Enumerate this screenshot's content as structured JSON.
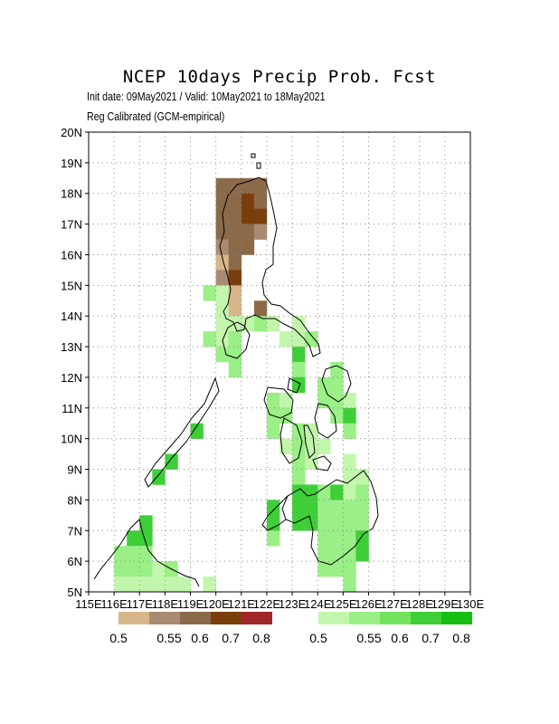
{
  "title": "NCEP 10days Precip Prob. Fcst",
  "subtitle_1": "Init date: 09May2021 / Valid: 10May2021 to 18May2021",
  "subtitle_2": "Reg Calibrated (GCM-empirical)",
  "axes": {
    "lat_labels": [
      "20N",
      "19N",
      "18N",
      "17N",
      "16N",
      "15N",
      "14N",
      "13N",
      "12N",
      "11N",
      "10N",
      "9N",
      "8N",
      "7N",
      "6N",
      "5N"
    ],
    "lon_labels": [
      "115E",
      "116E",
      "117E",
      "118E",
      "119E",
      "120E",
      "121E",
      "122E",
      "123E",
      "124E",
      "125E",
      "126E",
      "127E",
      "128E",
      "129E",
      "130E"
    ],
    "lon_range": [
      115,
      130
    ],
    "lat_range": [
      5,
      20
    ],
    "grid": "dotted"
  },
  "legend_below": {
    "labels": [
      "0.5",
      "0.55",
      "0.6",
      "0.7",
      "0.8"
    ],
    "colors": [
      "#d8b68c",
      "#a98a73",
      "#8b6a4a",
      "#7a3e0c",
      "#a0262a"
    ]
  },
  "legend_above": {
    "labels": [
      "0.5",
      "0.55",
      "0.6",
      "0.7",
      "0.8"
    ],
    "colors": [
      "#c3f6ad",
      "#9aef86",
      "#72e35c",
      "#3ecf38",
      "#17bf14"
    ]
  },
  "chart_data": {
    "type": "heatmap",
    "cells": [
      {
        "lon": 120.25,
        "lat": 18.25,
        "c": "#8b6a4a"
      },
      {
        "lon": 120.75,
        "lat": 18.25,
        "c": "#8b6a4a"
      },
      {
        "lon": 121.25,
        "lat": 18.25,
        "c": "#8b6a4a"
      },
      {
        "lon": 121.75,
        "lat": 18.25,
        "c": "#8b6a4a"
      },
      {
        "lon": 120.25,
        "lat": 17.75,
        "c": "#8b6a4a"
      },
      {
        "lon": 120.75,
        "lat": 17.75,
        "c": "#8b6a4a"
      },
      {
        "lon": 121.25,
        "lat": 17.75,
        "c": "#7a3e0c"
      },
      {
        "lon": 121.75,
        "lat": 17.75,
        "c": "#8b6a4a"
      },
      {
        "lon": 120.25,
        "lat": 17.25,
        "c": "#8b6a4a"
      },
      {
        "lon": 120.75,
        "lat": 17.25,
        "c": "#8b6a4a"
      },
      {
        "lon": 121.25,
        "lat": 17.25,
        "c": "#7a3e0c"
      },
      {
        "lon": 121.75,
        "lat": 17.25,
        "c": "#7a3e0c"
      },
      {
        "lon": 120.25,
        "lat": 16.75,
        "c": "#8b6a4a"
      },
      {
        "lon": 120.75,
        "lat": 16.75,
        "c": "#8b6a4a"
      },
      {
        "lon": 121.25,
        "lat": 16.75,
        "c": "#8b6a4a"
      },
      {
        "lon": 121.75,
        "lat": 16.75,
        "c": "#a98a73"
      },
      {
        "lon": 120.25,
        "lat": 16.25,
        "c": "#a98a73"
      },
      {
        "lon": 120.75,
        "lat": 16.25,
        "c": "#8b6a4a"
      },
      {
        "lon": 121.25,
        "lat": 16.25,
        "c": "#8b6a4a"
      },
      {
        "lon": 120.25,
        "lat": 15.75,
        "c": "#d8b68c"
      },
      {
        "lon": 120.75,
        "lat": 15.75,
        "c": "#8b6a4a"
      },
      {
        "lon": 120.25,
        "lat": 15.25,
        "c": "#a98a73"
      },
      {
        "lon": 120.75,
        "lat": 15.25,
        "c": "#7a3e0c"
      },
      {
        "lon": 119.75,
        "lat": 14.75,
        "c": "#9aef86"
      },
      {
        "lon": 120.25,
        "lat": 14.75,
        "c": "#c3f6ad"
      },
      {
        "lon": 120.75,
        "lat": 14.75,
        "c": "#d8b68c"
      },
      {
        "lon": 120.25,
        "lat": 14.25,
        "c": "#c3f6ad"
      },
      {
        "lon": 120.75,
        "lat": 14.25,
        "c": "#d8b68c"
      },
      {
        "lon": 121.75,
        "lat": 14.25,
        "c": "#8b6a4a"
      },
      {
        "lon": 120.25,
        "lat": 13.75,
        "c": "#c3f6ad"
      },
      {
        "lon": 120.75,
        "lat": 13.75,
        "c": "#c3f6ad"
      },
      {
        "lon": 121.25,
        "lat": 13.75,
        "c": "#c3f6ad"
      },
      {
        "lon": 121.75,
        "lat": 13.75,
        "c": "#9aef86"
      },
      {
        "lon": 122.25,
        "lat": 13.75,
        "c": "#c3f6ad"
      },
      {
        "lon": 123.25,
        "lat": 13.75,
        "c": "#c3f6ad"
      },
      {
        "lon": 119.75,
        "lat": 13.25,
        "c": "#9aef86"
      },
      {
        "lon": 120.25,
        "lat": 13.25,
        "c": "#c3f6ad"
      },
      {
        "lon": 120.75,
        "lat": 13.25,
        "c": "#9aef86"
      },
      {
        "lon": 122.75,
        "lat": 13.25,
        "c": "#c3f6ad"
      },
      {
        "lon": 123.25,
        "lat": 13.25,
        "c": "#c3f6ad"
      },
      {
        "lon": 123.75,
        "lat": 13.25,
        "c": "#9aef86"
      },
      {
        "lon": 120.25,
        "lat": 12.75,
        "c": "#9aef86"
      },
      {
        "lon": 120.75,
        "lat": 12.75,
        "c": "#9aef86"
      },
      {
        "lon": 123.25,
        "lat": 12.75,
        "c": "#3ecf38"
      },
      {
        "lon": 120.75,
        "lat": 12.25,
        "c": "#9aef86"
      },
      {
        "lon": 123.25,
        "lat": 12.25,
        "c": "#9aef86"
      },
      {
        "lon": 124.75,
        "lat": 12.25,
        "c": "#9aef86"
      },
      {
        "lon": 123.25,
        "lat": 11.75,
        "c": "#3ecf38"
      },
      {
        "lon": 124.25,
        "lat": 11.75,
        "c": "#9aef86"
      },
      {
        "lon": 124.75,
        "lat": 11.75,
        "c": "#9aef86"
      },
      {
        "lon": 122.25,
        "lat": 11.25,
        "c": "#9aef86"
      },
      {
        "lon": 122.75,
        "lat": 11.25,
        "c": "#c3f6ad"
      },
      {
        "lon": 124.25,
        "lat": 11.25,
        "c": "#9aef86"
      },
      {
        "lon": 124.75,
        "lat": 11.25,
        "c": "#9aef86"
      },
      {
        "lon": 125.25,
        "lat": 11.25,
        "c": "#c3f6ad"
      },
      {
        "lon": 122.25,
        "lat": 10.75,
        "c": "#9aef86"
      },
      {
        "lon": 122.75,
        "lat": 10.75,
        "c": "#9aef86"
      },
      {
        "lon": 124.75,
        "lat": 10.75,
        "c": "#9aef86"
      },
      {
        "lon": 125.25,
        "lat": 10.75,
        "c": "#3ecf38"
      },
      {
        "lon": 122.25,
        "lat": 10.25,
        "c": "#9aef86"
      },
      {
        "lon": 123.25,
        "lat": 10.25,
        "c": "#9aef86"
      },
      {
        "lon": 123.75,
        "lat": 10.25,
        "c": "#c3f6ad"
      },
      {
        "lon": 125.25,
        "lat": 10.25,
        "c": "#9aef86"
      },
      {
        "lon": 122.75,
        "lat": 9.75,
        "c": "#c3f6ad"
      },
      {
        "lon": 123.25,
        "lat": 9.75,
        "c": "#9aef86"
      },
      {
        "lon": 123.75,
        "lat": 9.75,
        "c": "#c3f6ad"
      },
      {
        "lon": 124.25,
        "lat": 9.75,
        "c": "#c3f6ad"
      },
      {
        "lon": 123.25,
        "lat": 9.25,
        "c": "#9aef86"
      },
      {
        "lon": 123.75,
        "lat": 9.25,
        "c": "#c3f6ad"
      },
      {
        "lon": 125.25,
        "lat": 9.25,
        "c": "#c3f6ad"
      },
      {
        "lon": 123.25,
        "lat": 8.75,
        "c": "#9aef86"
      },
      {
        "lon": 125.25,
        "lat": 8.75,
        "c": "#c3f6ad"
      },
      {
        "lon": 125.75,
        "lat": 8.75,
        "c": "#c3f6ad"
      },
      {
        "lon": 123.25,
        "lat": 8.25,
        "c": "#3ecf38"
      },
      {
        "lon": 123.75,
        "lat": 8.25,
        "c": "#3ecf38"
      },
      {
        "lon": 124.25,
        "lat": 8.25,
        "c": "#9aef86"
      },
      {
        "lon": 124.75,
        "lat": 8.25,
        "c": "#3ecf38"
      },
      {
        "lon": 125.25,
        "lat": 8.25,
        "c": "#c3f6ad"
      },
      {
        "lon": 125.75,
        "lat": 8.25,
        "c": "#9aef86"
      },
      {
        "lon": 122.25,
        "lat": 7.75,
        "c": "#3ecf38"
      },
      {
        "lon": 123.25,
        "lat": 7.75,
        "c": "#3ecf38"
      },
      {
        "lon": 123.75,
        "lat": 7.75,
        "c": "#3ecf38"
      },
      {
        "lon": 124.25,
        "lat": 7.75,
        "c": "#9aef86"
      },
      {
        "lon": 124.75,
        "lat": 7.75,
        "c": "#9aef86"
      },
      {
        "lon": 125.25,
        "lat": 7.75,
        "c": "#9aef86"
      },
      {
        "lon": 125.75,
        "lat": 7.75,
        "c": "#9aef86"
      },
      {
        "lon": 122.25,
        "lat": 7.25,
        "c": "#3ecf38"
      },
      {
        "lon": 123.25,
        "lat": 7.25,
        "c": "#3ecf38"
      },
      {
        "lon": 123.75,
        "lat": 7.25,
        "c": "#3ecf38"
      },
      {
        "lon": 124.25,
        "lat": 7.25,
        "c": "#9aef86"
      },
      {
        "lon": 124.75,
        "lat": 7.25,
        "c": "#9aef86"
      },
      {
        "lon": 125.25,
        "lat": 7.25,
        "c": "#9aef86"
      },
      {
        "lon": 125.75,
        "lat": 7.25,
        "c": "#9aef86"
      },
      {
        "lon": 122.25,
        "lat": 6.75,
        "c": "#9aef86"
      },
      {
        "lon": 124.25,
        "lat": 6.75,
        "c": "#9aef86"
      },
      {
        "lon": 124.75,
        "lat": 6.75,
        "c": "#9aef86"
      },
      {
        "lon": 125.25,
        "lat": 6.75,
        "c": "#9aef86"
      },
      {
        "lon": 125.75,
        "lat": 6.75,
        "c": "#3ecf38"
      },
      {
        "lon": 124.25,
        "lat": 6.25,
        "c": "#9aef86"
      },
      {
        "lon": 124.75,
        "lat": 6.25,
        "c": "#9aef86"
      },
      {
        "lon": 125.25,
        "lat": 6.25,
        "c": "#9aef86"
      },
      {
        "lon": 125.75,
        "lat": 6.25,
        "c": "#3ecf38"
      },
      {
        "lon": 124.25,
        "lat": 5.75,
        "c": "#9aef86"
      },
      {
        "lon": 124.75,
        "lat": 5.75,
        "c": "#9aef86"
      },
      {
        "lon": 125.25,
        "lat": 5.75,
        "c": "#9aef86"
      },
      {
        "lon": 125.25,
        "lat": 5.25,
        "c": "#9aef86"
      },
      {
        "lon": 119.25,
        "lat": 10.25,
        "c": "#3ecf38"
      },
      {
        "lon": 118.25,
        "lat": 9.25,
        "c": "#3ecf38"
      },
      {
        "lon": 117.75,
        "lat": 8.75,
        "c": "#3ecf38"
      },
      {
        "lon": 117.25,
        "lat": 7.25,
        "c": "#3ecf38"
      },
      {
        "lon": 116.75,
        "lat": 6.75,
        "c": "#3ecf38"
      },
      {
        "lon": 117.25,
        "lat": 6.75,
        "c": "#3ecf38"
      },
      {
        "lon": 116.25,
        "lat": 6.25,
        "c": "#9aef86"
      },
      {
        "lon": 116.75,
        "lat": 6.25,
        "c": "#9aef86"
      },
      {
        "lon": 117.25,
        "lat": 6.25,
        "c": "#9aef86"
      },
      {
        "lon": 116.25,
        "lat": 5.75,
        "c": "#9aef86"
      },
      {
        "lon": 116.75,
        "lat": 5.75,
        "c": "#9aef86"
      },
      {
        "lon": 117.25,
        "lat": 5.75,
        "c": "#9aef86"
      },
      {
        "lon": 117.75,
        "lat": 5.75,
        "c": "#c3f6ad"
      },
      {
        "lon": 118.25,
        "lat": 5.75,
        "c": "#9aef86"
      },
      {
        "lon": 116.25,
        "lat": 5.25,
        "c": "#c3f6ad"
      },
      {
        "lon": 116.75,
        "lat": 5.25,
        "c": "#c3f6ad"
      },
      {
        "lon": 117.25,
        "lat": 5.25,
        "c": "#c3f6ad"
      },
      {
        "lon": 117.75,
        "lat": 5.25,
        "c": "#c3f6ad"
      },
      {
        "lon": 118.25,
        "lat": 5.25,
        "c": "#c3f6ad"
      },
      {
        "lon": 118.75,
        "lat": 5.25,
        "c": "#c3f6ad"
      },
      {
        "lon": 119.75,
        "lat": 5.25,
        "c": "#c3f6ad"
      }
    ]
  }
}
